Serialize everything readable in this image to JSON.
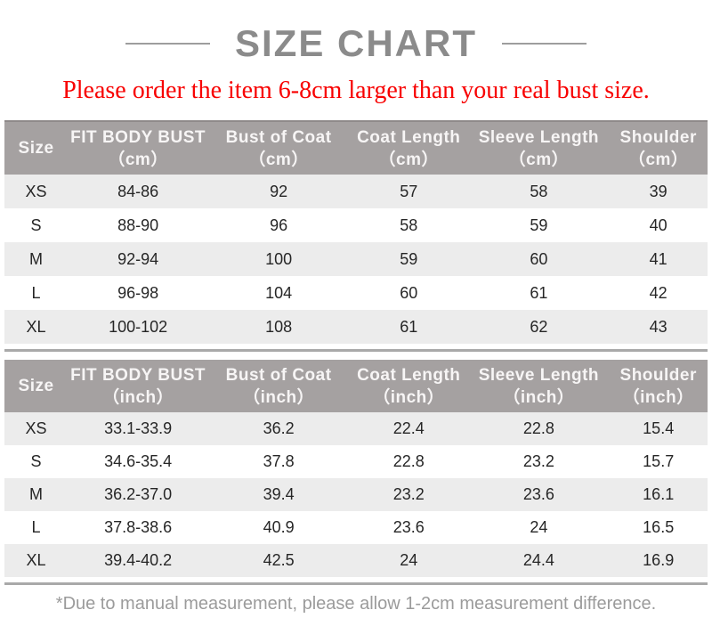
{
  "header": {
    "title": "SIZE CHART"
  },
  "notice": {
    "text": "Please order the item 6-8cm larger than your real bust size."
  },
  "tables": [
    {
      "unit": "cm",
      "columns": [
        {
          "label": "Size",
          "unit": ""
        },
        {
          "label": "FIT BODY BUST",
          "unit": "（cm）"
        },
        {
          "label": "Bust of Coat",
          "unit": "（cm）"
        },
        {
          "label": "Coat Length",
          "unit": "（cm）"
        },
        {
          "label": "Sleeve Length",
          "unit": "（cm）"
        },
        {
          "label": "Shoulder",
          "unit": "（cm）"
        }
      ],
      "rows": [
        [
          "XS",
          "84-86",
          "92",
          "57",
          "58",
          "39"
        ],
        [
          "S",
          "88-90",
          "96",
          "58",
          "59",
          "40"
        ],
        [
          "M",
          "92-94",
          "100",
          "59",
          "60",
          "41"
        ],
        [
          "L",
          "96-98",
          "104",
          "60",
          "61",
          "42"
        ],
        [
          "XL",
          "100-102",
          "108",
          "61",
          "62",
          "43"
        ]
      ]
    },
    {
      "unit": "inch",
      "columns": [
        {
          "label": "Size",
          "unit": ""
        },
        {
          "label": "FIT BODY BUST",
          "unit": "（inch）"
        },
        {
          "label": "Bust of Coat",
          "unit": "（inch）"
        },
        {
          "label": "Coat Length",
          "unit": "（inch）"
        },
        {
          "label": "Sleeve Length",
          "unit": "（inch）"
        },
        {
          "label": "Shoulder",
          "unit": "（inch）"
        }
      ],
      "rows": [
        [
          "XS",
          "33.1-33.9",
          "36.2",
          "22.4",
          "22.8",
          "15.4"
        ],
        [
          "S",
          "34.6-35.4",
          "37.8",
          "22.8",
          "23.2",
          "15.7"
        ],
        [
          "M",
          "36.2-37.0",
          "39.4",
          "23.2",
          "23.6",
          "16.1"
        ],
        [
          "L",
          "37.8-38.6",
          "40.9",
          "23.6",
          "24",
          "16.5"
        ],
        [
          "XL",
          "39.4-40.2",
          "42.5",
          "24",
          "24.4",
          "16.9"
        ]
      ]
    }
  ],
  "footer": {
    "note": "*Due to manual measurement, please allow 1-2cm measurement difference."
  },
  "colors": {
    "title_text": "#8b8b8b",
    "notice_text": "#f80000",
    "header_bg": "#a5a1a1",
    "header_text": "#f7f5f5",
    "row_alt_bg": "#ececec",
    "row_plain_bg": "#ffffff",
    "cell_text": "#262626",
    "rule_line": "#a9a9a9",
    "footer_text": "#9b9b9b"
  }
}
